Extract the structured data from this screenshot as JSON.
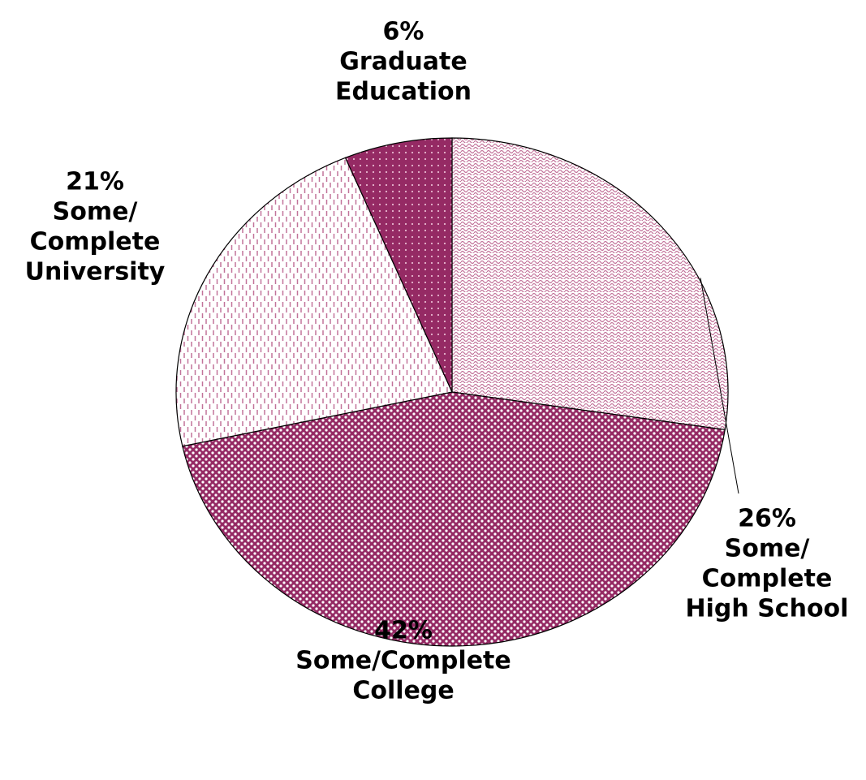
{
  "chart_data": {
    "type": "pie",
    "categories": [
      [
        "Some/",
        "Complete",
        "High School"
      ],
      [
        "Some/Complete",
        "College"
      ],
      [
        "Some/",
        "Complete",
        "University"
      ],
      [
        "Graduate",
        "Education"
      ]
    ],
    "values": [
      26,
      42,
      21,
      6
    ],
    "value_labels": [
      "26%",
      "42%",
      "21%",
      "6%"
    ],
    "colors": [
      "#c2739a",
      "#952a64",
      "#c2739a",
      "#952a64"
    ]
  }
}
